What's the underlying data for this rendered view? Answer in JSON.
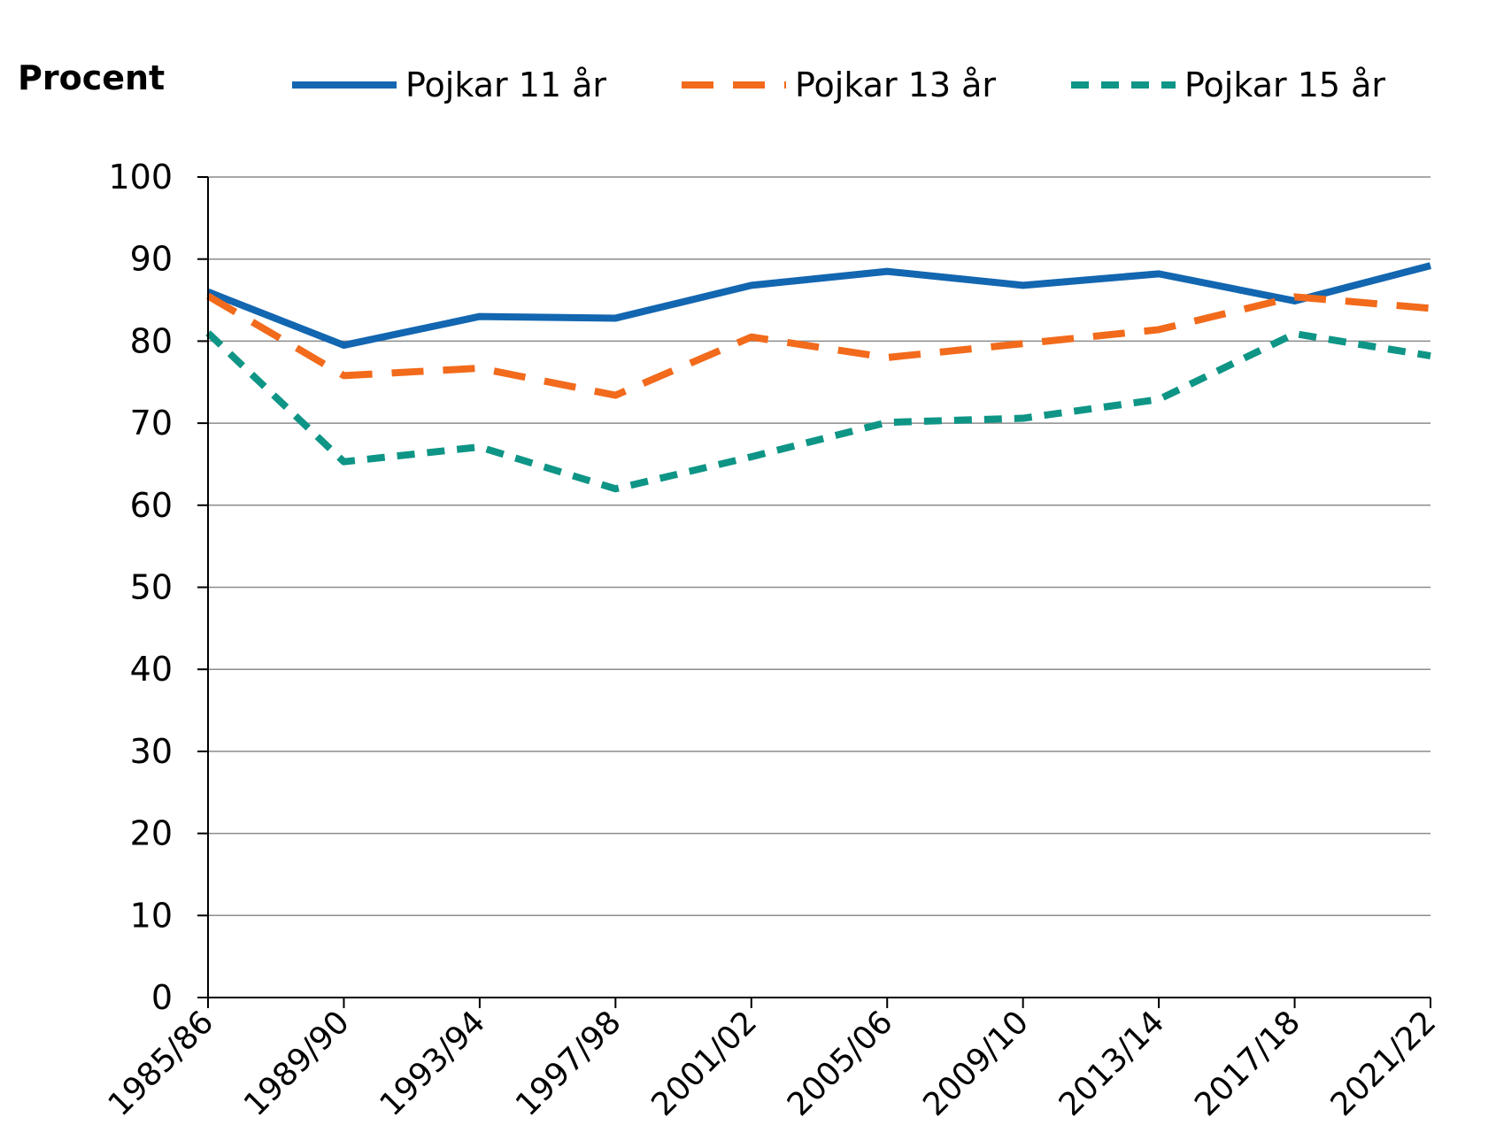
{
  "chart_data": {
    "type": "line",
    "ylabel": "Procent",
    "categories": [
      "1985/86",
      "1989/90",
      "1993/94",
      "1997/98",
      "2001/02",
      "2005/06",
      "2009/10",
      "2013/14",
      "2017/18",
      "2021/22"
    ],
    "ylim": [
      0,
      100
    ],
    "yticks": [
      0,
      10,
      20,
      30,
      40,
      50,
      60,
      70,
      80,
      90,
      100
    ],
    "grid": true,
    "legend_position": "top",
    "series": [
      {
        "name": "Pojkar 11 år",
        "color": "#1366b0",
        "style": "solid",
        "values": [
          86,
          79.5,
          83,
          82.8,
          86.8,
          88.5,
          86.8,
          88.2,
          84.9,
          89.2
        ]
      },
      {
        "name": "Pojkar 13 år",
        "color": "#f26a1b",
        "style": "dashed",
        "values": [
          85.5,
          75.8,
          76.7,
          73.4,
          80.5,
          78,
          79.7,
          81.4,
          85.4,
          84
        ]
      },
      {
        "name": "Pojkar 15 år",
        "color": "#0e9586",
        "style": "dotted",
        "values": [
          81,
          65.3,
          67.1,
          62,
          65.9,
          70.1,
          70.6,
          72.9,
          80.9,
          78.2
        ]
      }
    ]
  }
}
